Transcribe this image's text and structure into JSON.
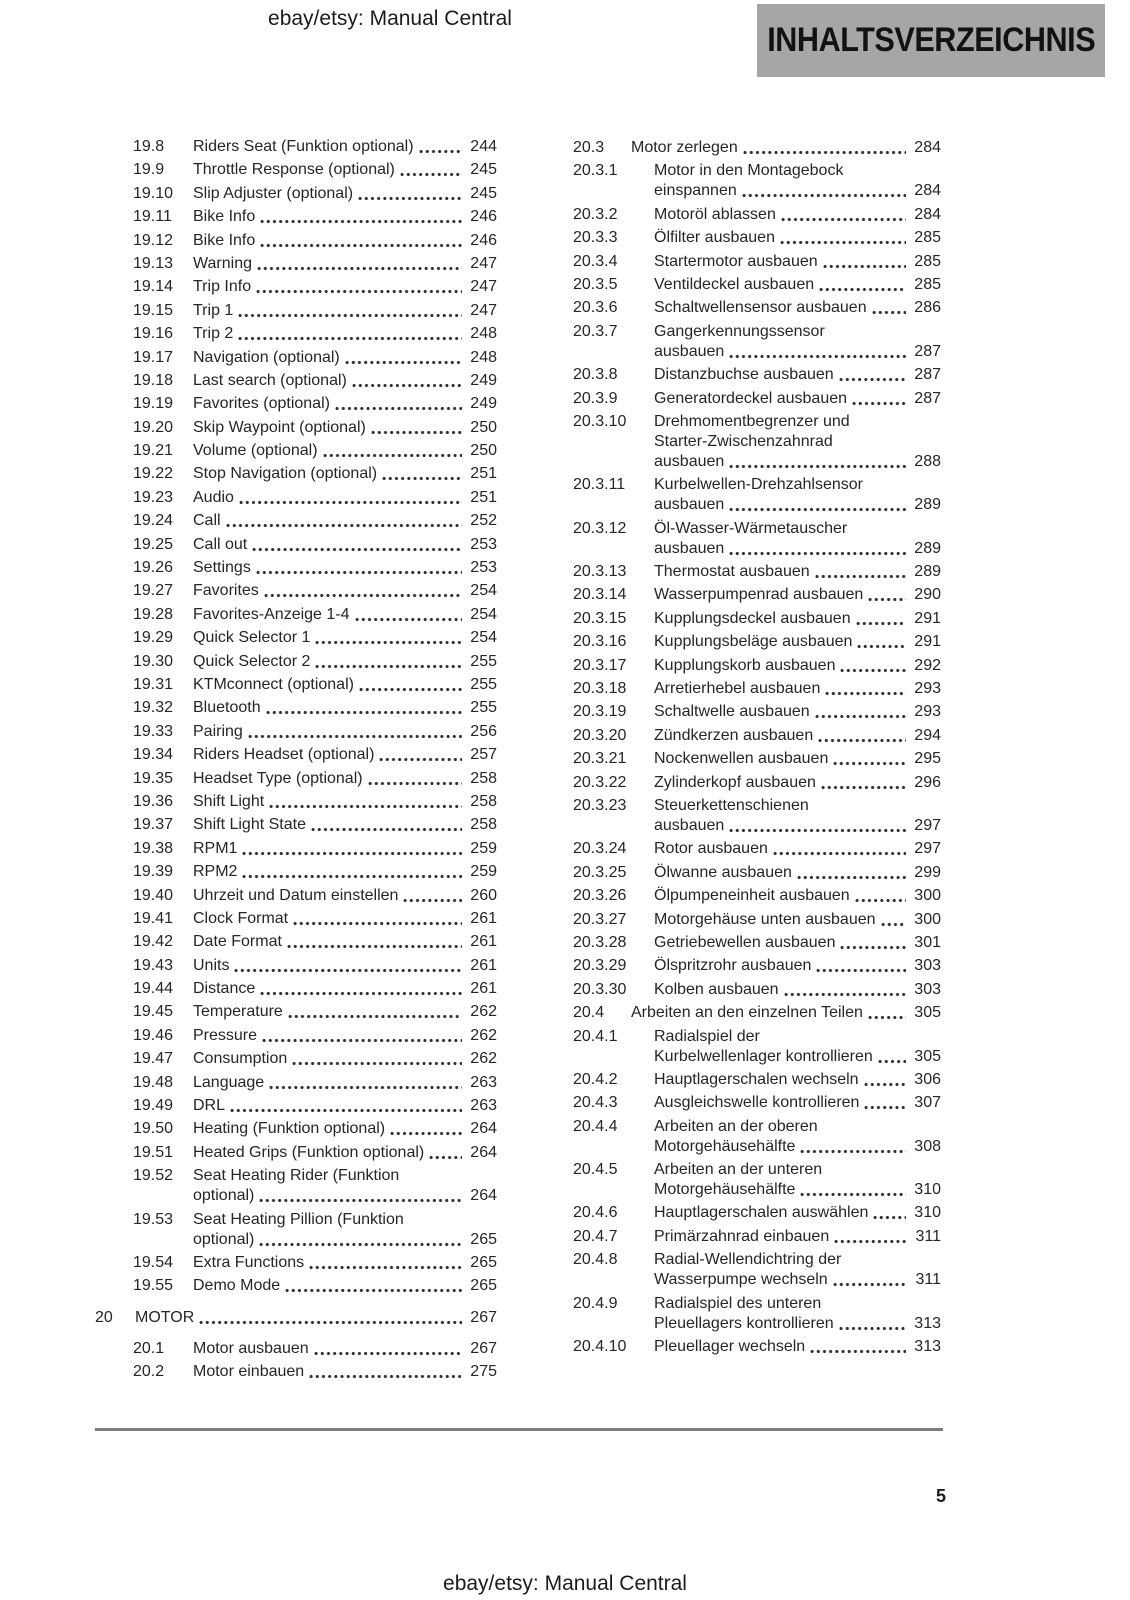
{
  "page": {
    "number": "5"
  },
  "header": {
    "doc_title": "ebay/etsy: Manual Central",
    "section_tag": "INHALTSVERZEICHNIS"
  },
  "footer": {
    "doc_title": "ebay/etsy: Manual Central"
  },
  "colors": {
    "text": "#262626",
    "tag_bg": "#a6a6a6",
    "rule": "#7c7c7c",
    "page_bg": "#ffffff"
  },
  "toc": {
    "left_column": [
      {
        "num": "19.8",
        "lines": [
          "Riders Seat (Funktion optional)"
        ],
        "page": "244",
        "level": "sub"
      },
      {
        "num": "19.9",
        "lines": [
          "Throttle Response (optional)"
        ],
        "page": "245",
        "level": "sub"
      },
      {
        "num": "19.10",
        "lines": [
          "Slip Adjuster (optional)"
        ],
        "page": "245",
        "level": "sub"
      },
      {
        "num": "19.11",
        "lines": [
          "Bike Info"
        ],
        "page": "246",
        "level": "sub"
      },
      {
        "num": "19.12",
        "lines": [
          "Bike Info"
        ],
        "page": "246",
        "level": "sub"
      },
      {
        "num": "19.13",
        "lines": [
          "Warning"
        ],
        "page": "247",
        "level": "sub"
      },
      {
        "num": "19.14",
        "lines": [
          "Trip Info"
        ],
        "page": "247",
        "level": "sub"
      },
      {
        "num": "19.15",
        "lines": [
          "Trip 1"
        ],
        "page": "247",
        "level": "sub"
      },
      {
        "num": "19.16",
        "lines": [
          "Trip 2"
        ],
        "page": "248",
        "level": "sub"
      },
      {
        "num": "19.17",
        "lines": [
          "Navigation (optional)"
        ],
        "page": "248",
        "level": "sub"
      },
      {
        "num": "19.18",
        "lines": [
          "Last search (optional)"
        ],
        "page": "249",
        "level": "sub"
      },
      {
        "num": "19.19",
        "lines": [
          "Favorites (optional)"
        ],
        "page": "249",
        "level": "sub"
      },
      {
        "num": "19.20",
        "lines": [
          "Skip Waypoint (optional)"
        ],
        "page": "250",
        "level": "sub"
      },
      {
        "num": "19.21",
        "lines": [
          "Volume (optional)"
        ],
        "page": "250",
        "level": "sub"
      },
      {
        "num": "19.22",
        "lines": [
          "Stop Navigation (optional)"
        ],
        "page": "251",
        "level": "sub"
      },
      {
        "num": "19.23",
        "lines": [
          "Audio"
        ],
        "page": "251",
        "level": "sub"
      },
      {
        "num": "19.24",
        "lines": [
          "Call"
        ],
        "page": "252",
        "level": "sub"
      },
      {
        "num": "19.25",
        "lines": [
          "Call out"
        ],
        "page": "253",
        "level": "sub"
      },
      {
        "num": "19.26",
        "lines": [
          "Settings"
        ],
        "page": "253",
        "level": "sub"
      },
      {
        "num": "19.27",
        "lines": [
          "Favorites"
        ],
        "page": "254",
        "level": "sub"
      },
      {
        "num": "19.28",
        "lines": [
          "Favorites-Anzeige 1-4"
        ],
        "page": "254",
        "level": "sub"
      },
      {
        "num": "19.29",
        "lines": [
          "Quick Selector 1"
        ],
        "page": "254",
        "level": "sub"
      },
      {
        "num": "19.30",
        "lines": [
          "Quick Selector 2"
        ],
        "page": "255",
        "level": "sub"
      },
      {
        "num": "19.31",
        "lines": [
          "KTMconnect (optional)"
        ],
        "page": "255",
        "level": "sub"
      },
      {
        "num": "19.32",
        "lines": [
          "Bluetooth"
        ],
        "page": "255",
        "level": "sub"
      },
      {
        "num": "19.33",
        "lines": [
          "Pairing"
        ],
        "page": "256",
        "level": "sub"
      },
      {
        "num": "19.34",
        "lines": [
          "Riders Headset (optional)"
        ],
        "page": "257",
        "level": "sub"
      },
      {
        "num": "19.35",
        "lines": [
          "Headset Type (optional)"
        ],
        "page": "258",
        "level": "sub"
      },
      {
        "num": "19.36",
        "lines": [
          "Shift Light"
        ],
        "page": "258",
        "level": "sub"
      },
      {
        "num": "19.37",
        "lines": [
          "Shift Light State"
        ],
        "page": "258",
        "level": "sub"
      },
      {
        "num": "19.38",
        "lines": [
          "RPM1"
        ],
        "page": "259",
        "level": "sub"
      },
      {
        "num": "19.39",
        "lines": [
          "RPM2"
        ],
        "page": "259",
        "level": "sub"
      },
      {
        "num": "19.40",
        "lines": [
          "Uhrzeit und Datum einstellen"
        ],
        "page": "260",
        "level": "sub"
      },
      {
        "num": "19.41",
        "lines": [
          "Clock Format"
        ],
        "page": "261",
        "level": "sub"
      },
      {
        "num": "19.42",
        "lines": [
          "Date Format"
        ],
        "page": "261",
        "level": "sub"
      },
      {
        "num": "19.43",
        "lines": [
          "Units"
        ],
        "page": "261",
        "level": "sub"
      },
      {
        "num": "19.44",
        "lines": [
          "Distance"
        ],
        "page": "261",
        "level": "sub"
      },
      {
        "num": "19.45",
        "lines": [
          "Temperature"
        ],
        "page": "262",
        "level": "sub"
      },
      {
        "num": "19.46",
        "lines": [
          "Pressure"
        ],
        "page": "262",
        "level": "sub"
      },
      {
        "num": "19.47",
        "lines": [
          "Consumption"
        ],
        "page": "262",
        "level": "sub"
      },
      {
        "num": "19.48",
        "lines": [
          "Language"
        ],
        "page": "263",
        "level": "sub"
      },
      {
        "num": "19.49",
        "lines": [
          "DRL"
        ],
        "page": "263",
        "level": "sub"
      },
      {
        "num": "19.50",
        "lines": [
          "Heating (Funktion optional)"
        ],
        "page": "264",
        "level": "sub"
      },
      {
        "num": "19.51",
        "lines": [
          "Heated Grips (Funktion optional)"
        ],
        "page": "264",
        "level": "sub"
      },
      {
        "num": "19.52",
        "lines": [
          "Seat Heating Rider (Funktion",
          "optional)"
        ],
        "page": "264",
        "level": "sub"
      },
      {
        "num": "19.53",
        "lines": [
          "Seat Heating Pillion (Funktion",
          "optional)"
        ],
        "page": "265",
        "level": "sub"
      },
      {
        "num": "19.54",
        "lines": [
          "Extra Functions"
        ],
        "page": "265",
        "level": "sub"
      },
      {
        "num": "19.55",
        "lines": [
          "Demo Mode"
        ],
        "page": "265",
        "level": "sub"
      },
      {
        "num": "20",
        "lines": [
          "MOTOR"
        ],
        "page": "267",
        "level": "section"
      },
      {
        "num": "20.1",
        "lines": [
          "Motor ausbauen"
        ],
        "page": "267",
        "level": "sub"
      },
      {
        "num": "20.2",
        "lines": [
          "Motor einbauen"
        ],
        "page": "275",
        "level": "sub"
      }
    ],
    "right_column": [
      {
        "num": "20.3",
        "lines": [
          "Motor zerlegen"
        ],
        "page": "284",
        "level": "sub"
      },
      {
        "num": "20.3.1",
        "lines": [
          "Motor in den Montagebock",
          "einspannen"
        ],
        "page": "284",
        "level": "subsub"
      },
      {
        "num": "20.3.2",
        "lines": [
          "Motoröl ablassen"
        ],
        "page": "284",
        "level": "subsub"
      },
      {
        "num": "20.3.3",
        "lines": [
          "Ölfilter ausbauen"
        ],
        "page": "285",
        "level": "subsub"
      },
      {
        "num": "20.3.4",
        "lines": [
          "Startermotor ausbauen"
        ],
        "page": "285",
        "level": "subsub"
      },
      {
        "num": "20.3.5",
        "lines": [
          "Ventildeckel ausbauen"
        ],
        "page": "285",
        "level": "subsub"
      },
      {
        "num": "20.3.6",
        "lines": [
          "Schaltwellensensor ausbauen"
        ],
        "page": "286",
        "level": "subsub"
      },
      {
        "num": "20.3.7",
        "lines": [
          "Gangerkennungssensor",
          "ausbauen"
        ],
        "page": "287",
        "level": "subsub"
      },
      {
        "num": "20.3.8",
        "lines": [
          "Distanzbuchse ausbauen"
        ],
        "page": "287",
        "level": "subsub"
      },
      {
        "num": "20.3.9",
        "lines": [
          "Generatordeckel ausbauen"
        ],
        "page": "287",
        "level": "subsub"
      },
      {
        "num": "20.3.10",
        "lines": [
          "Drehmomentbegrenzer und",
          "Starter-Zwischenzahnrad",
          "ausbauen"
        ],
        "page": "288",
        "level": "subsub"
      },
      {
        "num": "20.3.11",
        "lines": [
          "Kurbelwellen-Drehzahlsensor",
          "ausbauen"
        ],
        "page": "289",
        "level": "subsub"
      },
      {
        "num": "20.3.12",
        "lines": [
          "Öl-Wasser-Wärmetauscher",
          "ausbauen"
        ],
        "page": "289",
        "level": "subsub"
      },
      {
        "num": "20.3.13",
        "lines": [
          "Thermostat ausbauen"
        ],
        "page": "289",
        "level": "subsub"
      },
      {
        "num": "20.3.14",
        "lines": [
          "Wasserpumpenrad ausbauen"
        ],
        "page": "290",
        "level": "subsub"
      },
      {
        "num": "20.3.15",
        "lines": [
          "Kupplungsdeckel ausbauen"
        ],
        "page": "291",
        "level": "subsub"
      },
      {
        "num": "20.3.16",
        "lines": [
          "Kupplungsbeläge ausbauen"
        ],
        "page": "291",
        "level": "subsub"
      },
      {
        "num": "20.3.17",
        "lines": [
          "Kupplungskorb ausbauen"
        ],
        "page": "292",
        "level": "subsub"
      },
      {
        "num": "20.3.18",
        "lines": [
          "Arretierhebel ausbauen"
        ],
        "page": "293",
        "level": "subsub"
      },
      {
        "num": "20.3.19",
        "lines": [
          "Schaltwelle ausbauen"
        ],
        "page": "293",
        "level": "subsub"
      },
      {
        "num": "20.3.20",
        "lines": [
          "Zündkerzen ausbauen"
        ],
        "page": "294",
        "level": "subsub"
      },
      {
        "num": "20.3.21",
        "lines": [
          "Nockenwellen ausbauen"
        ],
        "page": "295",
        "level": "subsub"
      },
      {
        "num": "20.3.22",
        "lines": [
          "Zylinderkopf ausbauen"
        ],
        "page": "296",
        "level": "subsub"
      },
      {
        "num": "20.3.23",
        "lines": [
          "Steuerkettenschienen",
          "ausbauen"
        ],
        "page": "297",
        "level": "subsub"
      },
      {
        "num": "20.3.24",
        "lines": [
          "Rotor ausbauen"
        ],
        "page": "297",
        "level": "subsub"
      },
      {
        "num": "20.3.25",
        "lines": [
          "Ölwanne ausbauen"
        ],
        "page": "299",
        "level": "subsub"
      },
      {
        "num": "20.3.26",
        "lines": [
          "Ölpumpeneinheit ausbauen"
        ],
        "page": "300",
        "level": "subsub"
      },
      {
        "num": "20.3.27",
        "lines": [
          "Motorgehäuse unten ausbauen"
        ],
        "page": "300",
        "level": "subsub"
      },
      {
        "num": "20.3.28",
        "lines": [
          "Getriebewellen ausbauen"
        ],
        "page": "301",
        "level": "subsub"
      },
      {
        "num": "20.3.29",
        "lines": [
          "Ölspritzrohr ausbauen"
        ],
        "page": "303",
        "level": "subsub"
      },
      {
        "num": "20.3.30",
        "lines": [
          "Kolben ausbauen"
        ],
        "page": "303",
        "level": "subsub"
      },
      {
        "num": "20.4",
        "lines": [
          "Arbeiten an den einzelnen Teilen"
        ],
        "page": "305",
        "level": "sub"
      },
      {
        "num": "20.4.1",
        "lines": [
          "Radialspiel der",
          "Kurbelwellenlager kontrollieren"
        ],
        "page": "305",
        "level": "subsub"
      },
      {
        "num": "20.4.2",
        "lines": [
          "Hauptlagerschalen wechseln"
        ],
        "page": "306",
        "level": "subsub"
      },
      {
        "num": "20.4.3",
        "lines": [
          "Ausgleichswelle kontrollieren"
        ],
        "page": "307",
        "level": "subsub"
      },
      {
        "num": "20.4.4",
        "lines": [
          "Arbeiten an der oberen",
          "Motorgehäusehälfte"
        ],
        "page": "308",
        "level": "subsub"
      },
      {
        "num": "20.4.5",
        "lines": [
          "Arbeiten an der unteren",
          "Motorgehäusehälfte"
        ],
        "page": "310",
        "level": "subsub"
      },
      {
        "num": "20.4.6",
        "lines": [
          "Hauptlagerschalen auswählen"
        ],
        "page": "310",
        "level": "subsub"
      },
      {
        "num": "20.4.7",
        "lines": [
          "Primärzahnrad einbauen"
        ],
        "page": "311",
        "level": "subsub"
      },
      {
        "num": "20.4.8",
        "lines": [
          "Radial-Wellendichtring der",
          "Wasserpumpe wechseln"
        ],
        "page": "311",
        "level": "subsub"
      },
      {
        "num": "20.4.9",
        "lines": [
          "Radialspiel des unteren",
          "Pleuellagers kontrollieren"
        ],
        "page": "313",
        "level": "subsub"
      },
      {
        "num": "20.4.10",
        "lines": [
          "Pleuellager wechseln"
        ],
        "page": "313",
        "level": "subsub"
      }
    ]
  }
}
